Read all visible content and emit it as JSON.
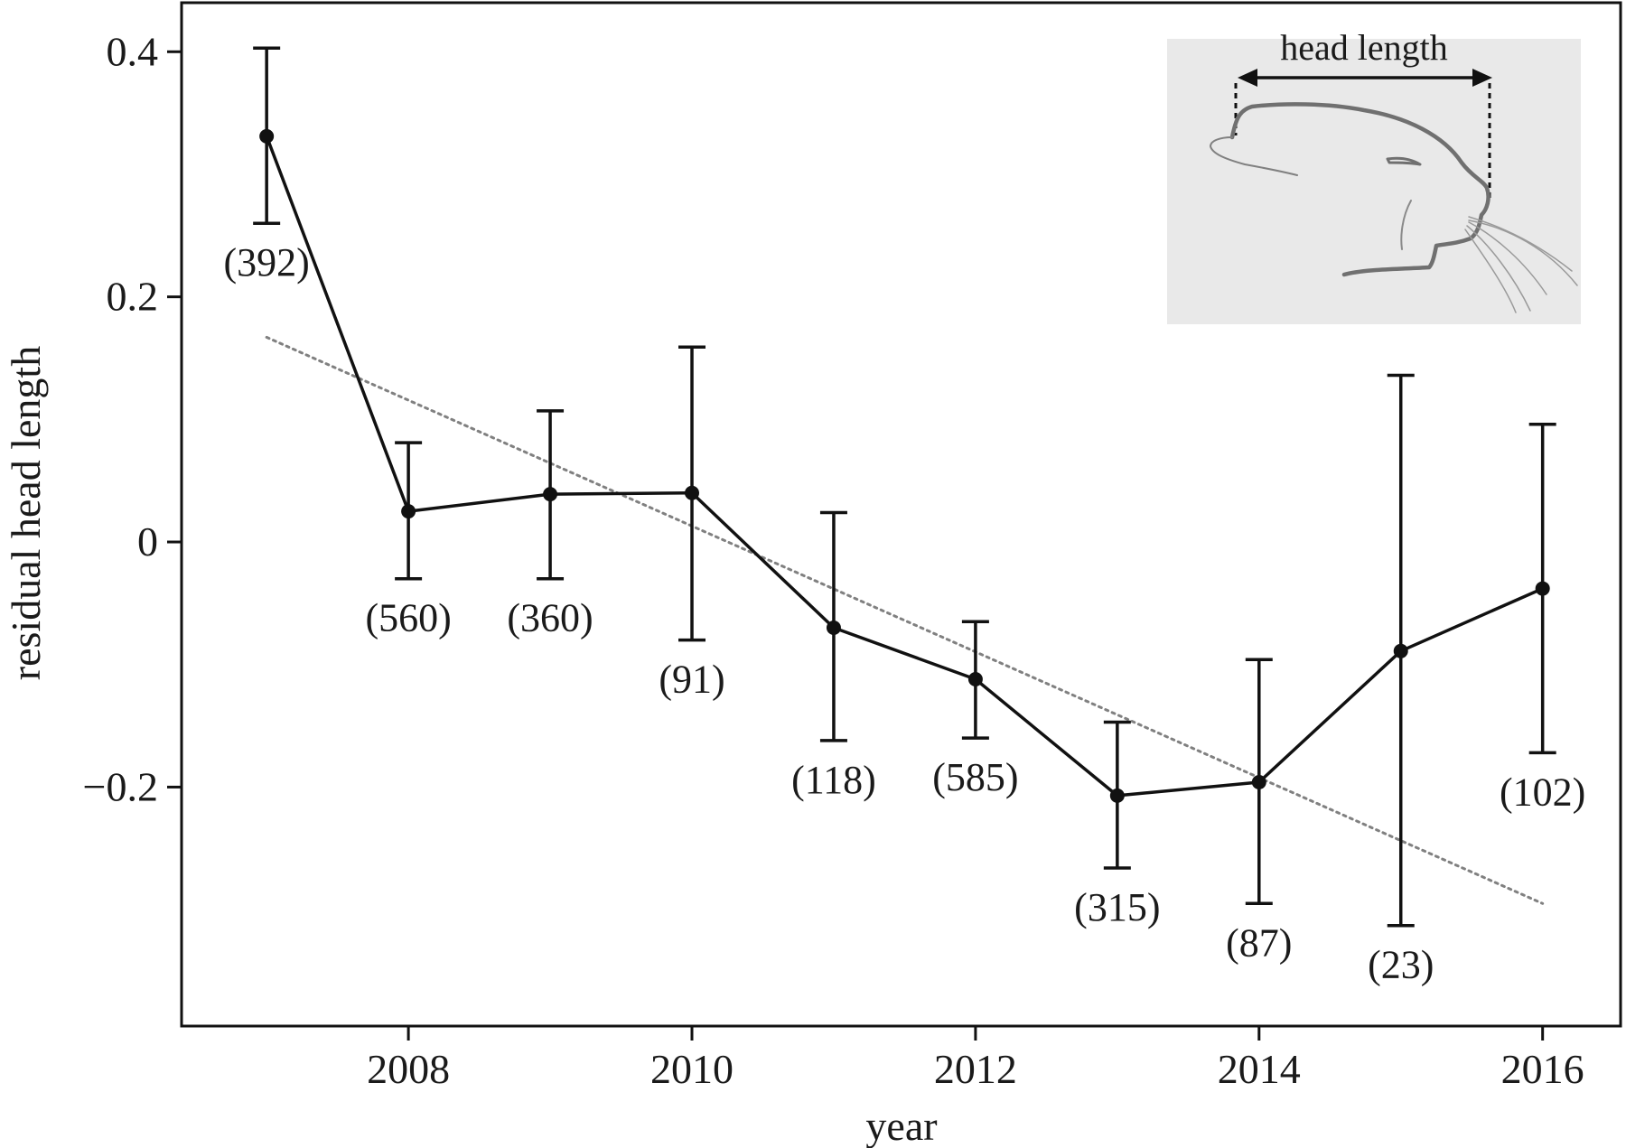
{
  "chart_data": {
    "type": "line",
    "title": "",
    "xlabel": "year",
    "ylabel": "residual head length",
    "xlim": [
      2006.4,
      2016.55
    ],
    "ylim": [
      -0.395,
      0.44
    ],
    "xticks": [
      2008,
      2010,
      2012,
      2014,
      2016
    ],
    "xtick_labels": [
      "2008",
      "2010",
      "2012",
      "2014",
      "2016"
    ],
    "yticks": [
      0.4,
      0.2,
      0,
      -0.2
    ],
    "ytick_labels": [
      "0.4",
      "0.2",
      "0",
      "−0.2"
    ],
    "grid": false,
    "series": [
      {
        "x": [
          2007,
          2008,
          2009,
          2010,
          2011,
          2012,
          2013,
          2014,
          2015,
          2016
        ],
        "y": [
          0.331,
          0.025,
          0.039,
          0.04,
          -0.07,
          -0.112,
          -0.207,
          -0.196,
          -0.089,
          -0.038
        ],
        "error_low": [
          0.26,
          -0.03,
          -0.03,
          -0.08,
          -0.162,
          -0.16,
          -0.266,
          -0.295,
          -0.313,
          -0.172
        ],
        "error_high": [
          0.403,
          0.081,
          0.107,
          0.159,
          0.024,
          -0.065,
          -0.147,
          -0.096,
          0.136,
          0.096
        ],
        "counts": [
          "(392)",
          "(560)",
          "(360)",
          "(91)",
          "(118)",
          "(585)",
          "(315)",
          "(87)",
          "(23)",
          "(102)"
        ],
        "count_position": [
          "below",
          "below",
          "below",
          "below",
          "below",
          "below",
          "below",
          "below",
          "below",
          "below"
        ],
        "color": "#111111"
      }
    ],
    "trend_line": {
      "x": [
        2007,
        2016
      ],
      "y": [
        0.167,
        -0.295
      ],
      "style": "dotted",
      "color": "#808080"
    },
    "inset": {
      "label": "head length",
      "depiction": "otter-head-icon",
      "background": "#e9e9e9"
    }
  }
}
